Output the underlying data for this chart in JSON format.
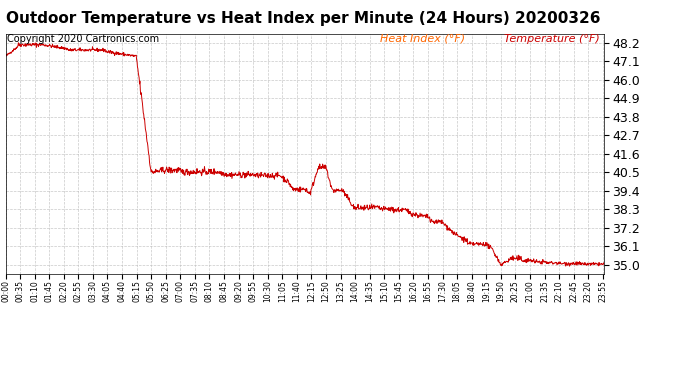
{
  "title": "Outdoor Temperature vs Heat Index per Minute (24 Hours) 20200326",
  "copyright_text": "Copyright 2020 Cartronics.com",
  "legend_heat_index": "Heat Index (°F)",
  "legend_temperature": "Temperature (°F)",
  "line_color": "#cc0000",
  "background_color": "#ffffff",
  "grid_color": "#bbbbbb",
  "title_color": "#000000",
  "copyright_color": "#000000",
  "legend_heat_color": "#ff6600",
  "legend_temp_color": "#cc0000",
  "y_min": 34.45,
  "y_max": 48.75,
  "y_ticks": [
    35.0,
    36.1,
    37.2,
    38.3,
    39.4,
    40.5,
    41.6,
    42.7,
    43.8,
    44.9,
    46.0,
    47.1,
    48.2
  ],
  "total_minutes": 1440,
  "x_tick_minutes": [
    0,
    35,
    70,
    105,
    140,
    175,
    210,
    245,
    280,
    315,
    350,
    385,
    420,
    455,
    490,
    525,
    560,
    595,
    630,
    665,
    700,
    735,
    770,
    805,
    840,
    875,
    910,
    945,
    980,
    1015,
    1050,
    1085,
    1120,
    1155,
    1190,
    1225,
    1260,
    1295,
    1330,
    1365,
    1400,
    1435
  ],
  "x_tick_labels": [
    "00:00",
    "00:35",
    "01:10",
    "01:45",
    "02:20",
    "02:55",
    "03:30",
    "04:05",
    "04:40",
    "05:15",
    "05:50",
    "06:25",
    "07:00",
    "07:35",
    "08:10",
    "08:45",
    "09:20",
    "09:55",
    "10:30",
    "11:05",
    "11:40",
    "12:15",
    "12:50",
    "13:25",
    "14:00",
    "14:35",
    "15:10",
    "15:45",
    "16:20",
    "16:55",
    "17:30",
    "18:05",
    "18:40",
    "19:15",
    "19:50",
    "20:25",
    "21:00",
    "21:35",
    "22:10",
    "22:45",
    "23:20",
    "23:55"
  ],
  "title_fontsize": 11,
  "copyright_fontsize": 7,
  "legend_fontsize": 8,
  "ytick_fontsize": 9,
  "xtick_fontsize": 5.5
}
